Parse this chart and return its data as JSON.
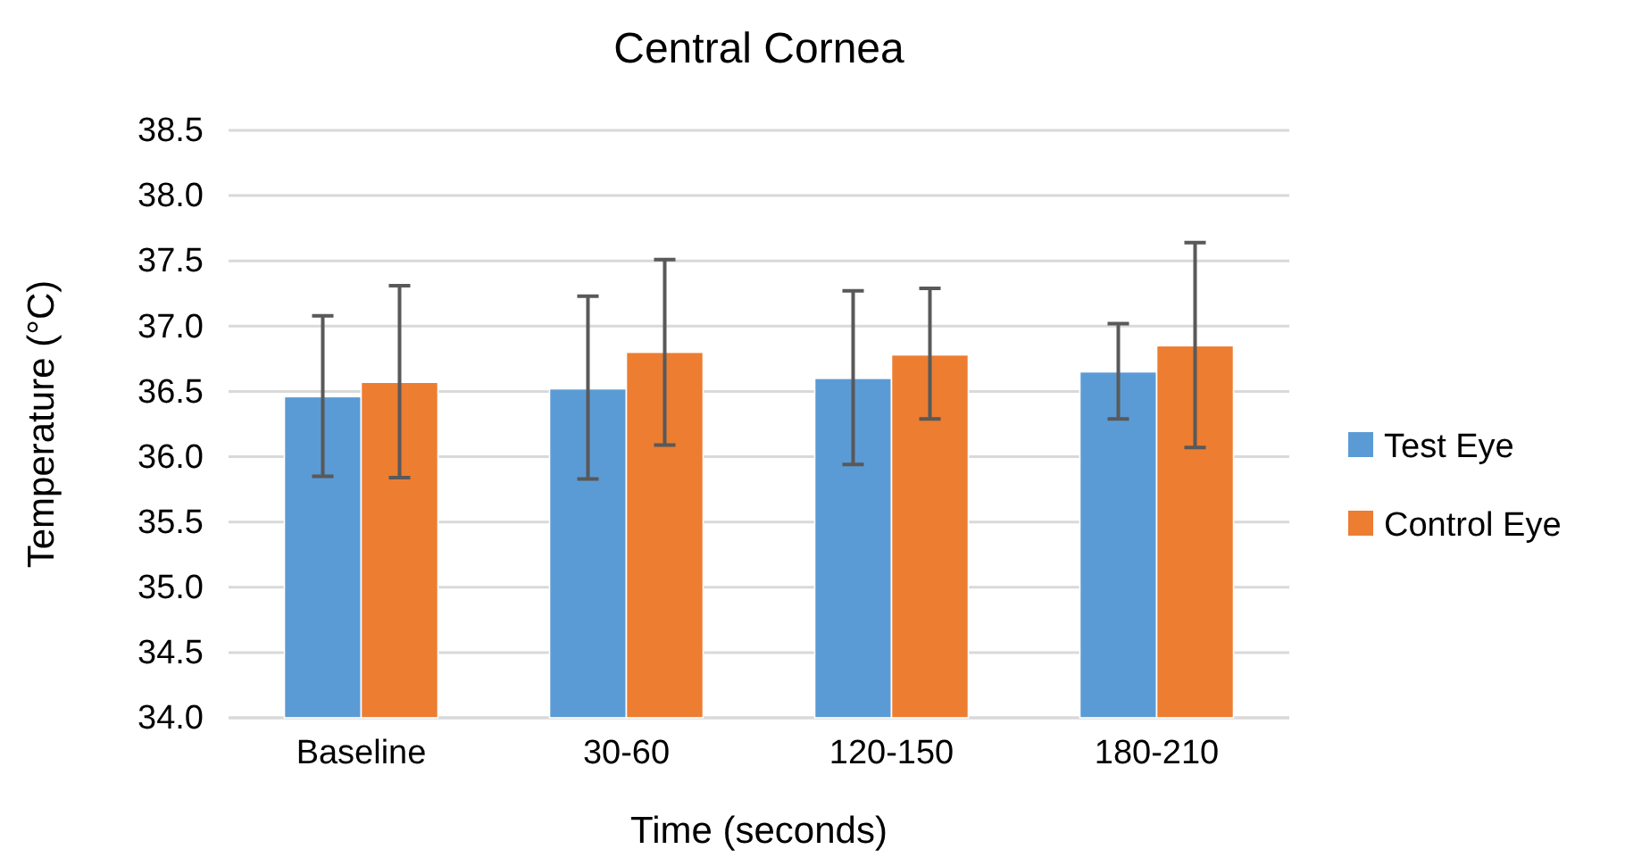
{
  "chart_data": {
    "type": "bar",
    "title": "Central Cornea",
    "xlabel": "Time (seconds)",
    "ylabel": "Temperature (°C)",
    "categories": [
      "Baseline",
      "30-60",
      "120-150",
      "180-210"
    ],
    "series": [
      {
        "name": "Test Eye",
        "color": "#5b9bd5",
        "values": [
          36.46,
          36.52,
          36.6,
          36.65
        ],
        "errors": [
          [
            35.85,
            37.08
          ],
          [
            35.83,
            37.23
          ],
          [
            35.94,
            37.27
          ],
          [
            36.29,
            37.02
          ]
        ]
      },
      {
        "name": "Control Eye",
        "color": "#ed7d31",
        "values": [
          36.57,
          36.8,
          36.78,
          36.85
        ],
        "errors": [
          [
            35.84,
            37.31
          ],
          [
            36.09,
            37.51
          ],
          [
            36.29,
            37.29
          ],
          [
            36.07,
            37.64
          ]
        ]
      }
    ],
    "ylim": [
      34,
      38.5
    ],
    "yticks": [
      {
        "value": 34,
        "label": "34.0"
      },
      {
        "value": 34.5,
        "label": "34.5"
      },
      {
        "value": 35,
        "label": "35.0"
      },
      {
        "value": 35.5,
        "label": "35.5"
      },
      {
        "value": 36,
        "label": "36.0"
      },
      {
        "value": 36.5,
        "label": "36.5"
      },
      {
        "value": 37,
        "label": "37.0"
      },
      {
        "value": 37.5,
        "label": "37.5"
      },
      {
        "value": 38,
        "label": "38.0"
      },
      {
        "value": 38.5,
        "label": "38.5"
      }
    ],
    "grid": "y",
    "legend": "right"
  }
}
